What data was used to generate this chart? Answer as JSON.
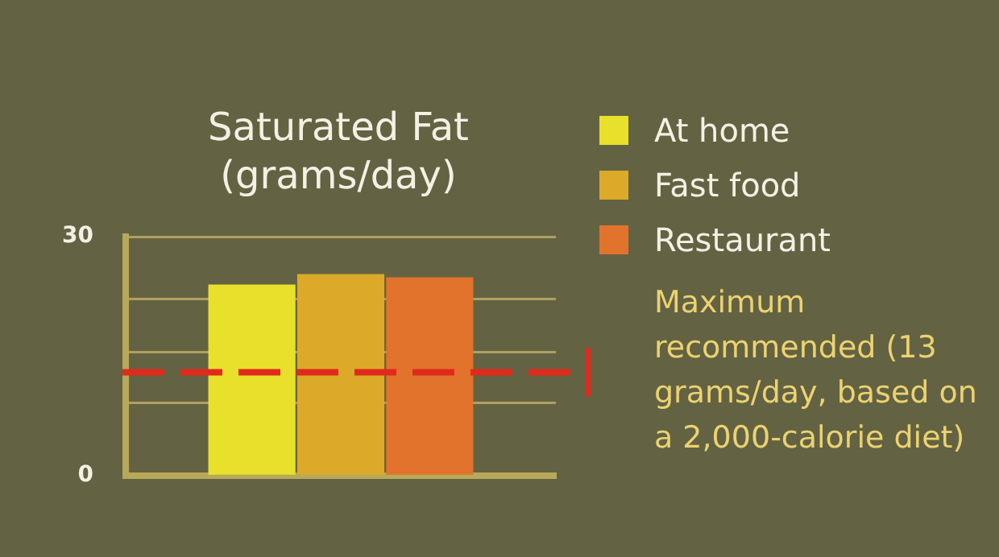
{
  "chart_data": {
    "type": "bar",
    "title": "Saturated Fat\n(grams/day)",
    "categories": [
      null
    ],
    "series": [
      {
        "name": "At home",
        "color": "#e8e02a",
        "values": [
          24
        ]
      },
      {
        "name": "Fast food",
        "color": "#dcaa28",
        "values": [
          25.3
        ]
      },
      {
        "name": "Restaurant",
        "color": "#e2732c",
        "values": [
          24.9
        ]
      }
    ],
    "ylim": [
      0,
      30
    ],
    "yticks": [
      0,
      {
        "value": 9.2,
        "label": null
      },
      {
        "value": 15.5,
        "label": null
      },
      {
        "value": 22.2,
        "label": null
      },
      30
    ],
    "grid": "y",
    "legend": "top right",
    "ref_lines": [
      {
        "axis": "y",
        "value": 13,
        "label": "Maximum recommended (13 grams/day, based on a 2,000-calorie diet)",
        "color": "#e02a1c",
        "line_style": "dashed"
      }
    ]
  }
}
